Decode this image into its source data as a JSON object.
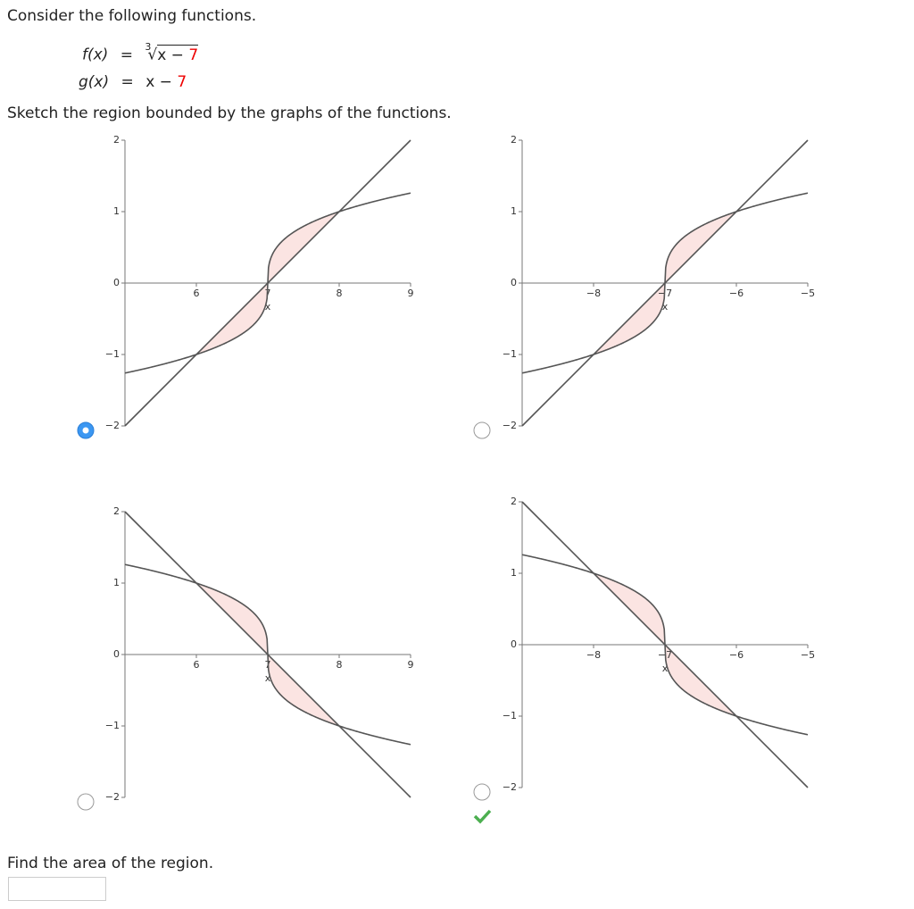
{
  "question": {
    "intro": "Consider the following functions.",
    "f_label": "f(x)",
    "f_equals": "=",
    "f_root_index": "3",
    "f_radicand": "x − ",
    "f_const": "7",
    "g_label": "g(x)",
    "g_equals": "=",
    "g_expr": "x − ",
    "g_const": "7",
    "prompt": "Sketch the region bounded by the graphs of the functions."
  },
  "options": [
    {
      "selected": true,
      "reflected": false,
      "xlim": [
        5,
        9
      ],
      "ylim": [
        -2,
        2
      ],
      "xticks": [
        6,
        7,
        8,
        9
      ],
      "yticks": [
        {
          "value": -2,
          "label": "−2"
        },
        {
          "value": -1,
          "label": "−1"
        },
        0,
        1,
        2
      ],
      "x_label": "x"
    },
    {
      "selected": false,
      "reflected": false,
      "xlim": [
        -9,
        -5
      ],
      "ylim": [
        -2,
        2
      ],
      "xticks": [
        {
          "value": -8,
          "label": "−8"
        },
        {
          "value": -7,
          "label": "−7"
        },
        {
          "value": -6,
          "label": "−6"
        },
        {
          "value": -5,
          "label": "−5"
        }
      ],
      "yticks": [
        {
          "value": -2,
          "label": "−2"
        },
        {
          "value": -1,
          "label": "−1"
        },
        0,
        1,
        2
      ],
      "x_label": "x"
    },
    {
      "selected": false,
      "reflected": true,
      "xlim": [
        5,
        9
      ],
      "ylim": [
        -2,
        2
      ],
      "xticks": [
        6,
        7,
        8,
        9
      ],
      "yticks": [
        {
          "value": -2,
          "label": "−2"
        },
        {
          "value": -1,
          "label": "−1"
        },
        0,
        1,
        2
      ],
      "x_label": "x"
    },
    {
      "selected": false,
      "correct": true,
      "reflected": true,
      "xlim": [
        -9,
        -5
      ],
      "ylim": [
        -2,
        2
      ],
      "xticks": [
        {
          "value": -8,
          "label": "−8"
        },
        {
          "value": -7,
          "label": "−7"
        },
        {
          "value": -6,
          "label": "−6"
        },
        {
          "value": -5,
          "label": "−5"
        }
      ],
      "yticks": [
        {
          "value": -2,
          "label": "−2"
        },
        {
          "value": -1,
          "label": "−1"
        },
        0,
        1,
        2
      ],
      "x_label": "x"
    }
  ],
  "area_prompt": "Find the area of the region."
}
